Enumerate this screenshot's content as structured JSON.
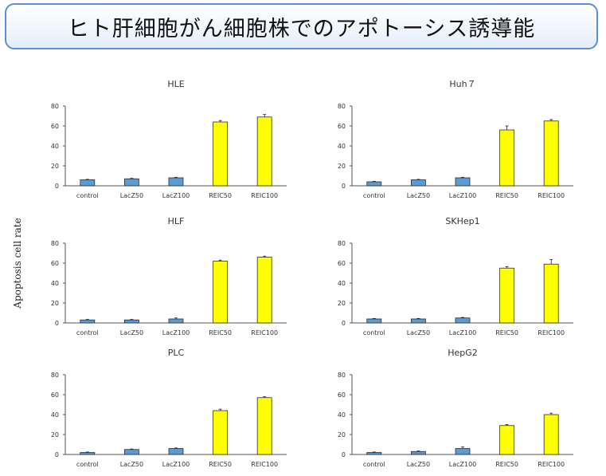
{
  "header": {
    "title": "ヒト肝細胞がん細胞株でのアポトーシス誘導能"
  },
  "y_axis_label": "Apoptosis cell rate",
  "colors": {
    "control_bar": "#5a9bd5",
    "reic_bar": "#ffff00",
    "bar_stroke": "#2e2e2e",
    "axis": "#555555"
  },
  "chart_data": [
    {
      "type": "bar",
      "title": "HLE",
      "categories": [
        "control",
        "LacZ50",
        "LacZ100",
        "REIC50",
        "REIC100"
      ],
      "values": [
        6,
        7,
        8,
        64,
        69
      ],
      "errors": [
        0.5,
        0.5,
        0.5,
        1.5,
        2.5
      ],
      "yticks": [
        0,
        20,
        40,
        60,
        80
      ],
      "ylim": [
        0,
        80
      ]
    },
    {
      "type": "bar",
      "title": "Huh７",
      "categories": [
        "control",
        "LacZ50",
        "LacZ100",
        "REIC50",
        "REIC100"
      ],
      "values": [
        4,
        6,
        8,
        56,
        65
      ],
      "errors": [
        0.5,
        0.5,
        0.5,
        4,
        1.5
      ],
      "yticks": [
        0,
        20,
        40,
        60,
        80
      ],
      "ylim": [
        0,
        80
      ]
    },
    {
      "type": "bar",
      "title": "HLF",
      "categories": [
        "control",
        "LacZ50",
        "LacZ100",
        "REIC50",
        "REIC100"
      ],
      "values": [
        3,
        3,
        4,
        62,
        66
      ],
      "errors": [
        0.5,
        0.5,
        1,
        1,
        1
      ],
      "yticks": [
        0,
        20,
        40,
        60,
        80
      ],
      "ylim": [
        0,
        80
      ]
    },
    {
      "type": "bar",
      "title": "SKHep1",
      "categories": [
        "control",
        "LacZ50",
        "LacZ100",
        "REIC50",
        "REIC100"
      ],
      "values": [
        4,
        4,
        5,
        55,
        59
      ],
      "errors": [
        0.5,
        0.5,
        0.5,
        1.5,
        4.5
      ],
      "yticks": [
        0,
        20,
        40,
        60,
        80
      ],
      "ylim": [
        0,
        80
      ]
    },
    {
      "type": "bar",
      "title": "PLC",
      "categories": [
        "control",
        "LacZ50",
        "LacZ100",
        "REIC50",
        "REIC100"
      ],
      "values": [
        2,
        5,
        6,
        44,
        57
      ],
      "errors": [
        0.5,
        0.5,
        0.5,
        1.5,
        1
      ],
      "yticks": [
        0,
        20,
        40,
        60,
        80
      ],
      "ylim": [
        0,
        80
      ]
    },
    {
      "type": "bar",
      "title": "HepG2",
      "categories": [
        "control",
        "LacZ50",
        "LacZ100",
        "REIC50",
        "REIC100"
      ],
      "values": [
        2,
        3,
        6,
        29,
        40
      ],
      "errors": [
        0.5,
        0.5,
        1.5,
        1,
        1.5
      ],
      "yticks": [
        0,
        20,
        40,
        60,
        80
      ],
      "ylim": [
        0,
        80
      ]
    }
  ]
}
